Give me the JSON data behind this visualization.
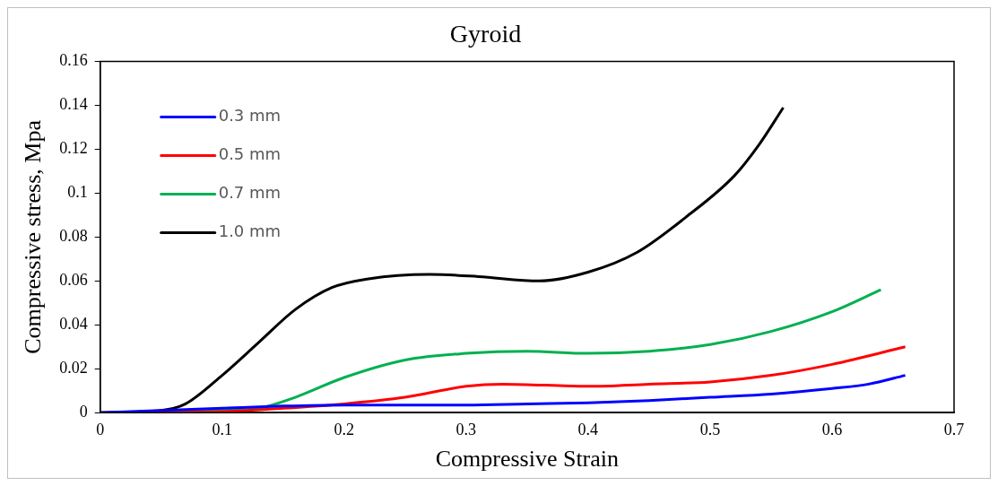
{
  "chart_data": {
    "type": "line",
    "title": "Gyroid",
    "xlabel": "Compressive Strain",
    "ylabel": "Compressive stress, Mpa",
    "xlim": [
      0,
      0.7
    ],
    "xticks": [
      0,
      0.1,
      0.2,
      0.3,
      0.4,
      0.5,
      0.6,
      0.7
    ],
    "ylim": [
      0,
      0.16
    ],
    "yticks": [
      0,
      0.02,
      0.04,
      0.06,
      0.08,
      0.1,
      0.12,
      0.14,
      0.16
    ],
    "grid": false,
    "legend": "top left",
    "marker": "none",
    "line_style": "solid",
    "series": [
      {
        "name": "0.3 mm",
        "color": "#0000ff",
        "x": [
          0,
          0.05,
          0.1,
          0.15,
          0.2,
          0.3,
          0.35,
          0.4,
          0.45,
          0.5,
          0.55,
          0.6,
          0.63,
          0.66
        ],
        "values": [
          0,
          0.001,
          0.002,
          0.003,
          0.0035,
          0.0035,
          0.004,
          0.0045,
          0.0055,
          0.007,
          0.0085,
          0.011,
          0.013,
          0.017
        ]
      },
      {
        "name": "0.5 mm",
        "color": "#ff0000",
        "x": [
          0,
          0.1,
          0.15,
          0.2,
          0.25,
          0.3,
          0.33,
          0.4,
          0.45,
          0.5,
          0.55,
          0.6,
          0.66
        ],
        "values": [
          0,
          0.0005,
          0.002,
          0.004,
          0.007,
          0.012,
          0.013,
          0.012,
          0.013,
          0.014,
          0.017,
          0.022,
          0.03
        ]
      },
      {
        "name": "0.7 mm",
        "color": "#00b050",
        "x": [
          0,
          0.1,
          0.13,
          0.16,
          0.2,
          0.25,
          0.3,
          0.35,
          0.4,
          0.45,
          0.5,
          0.55,
          0.6,
          0.64
        ],
        "values": [
          0,
          0.001,
          0.002,
          0.007,
          0.016,
          0.024,
          0.027,
          0.028,
          0.027,
          0.028,
          0.031,
          0.037,
          0.046,
          0.056
        ]
      },
      {
        "name": "1.0 mm",
        "color": "#000000",
        "x": [
          0,
          0.05,
          0.07,
          0.1,
          0.13,
          0.16,
          0.19,
          0.22,
          0.27,
          0.31,
          0.36,
          0.4,
          0.44,
          0.48,
          0.52,
          0.54,
          0.56
        ],
        "values": [
          0,
          0.001,
          0.004,
          0.017,
          0.032,
          0.047,
          0.057,
          0.061,
          0.063,
          0.062,
          0.06,
          0.064,
          0.073,
          0.089,
          0.108,
          0.122,
          0.139
        ]
      }
    ]
  }
}
